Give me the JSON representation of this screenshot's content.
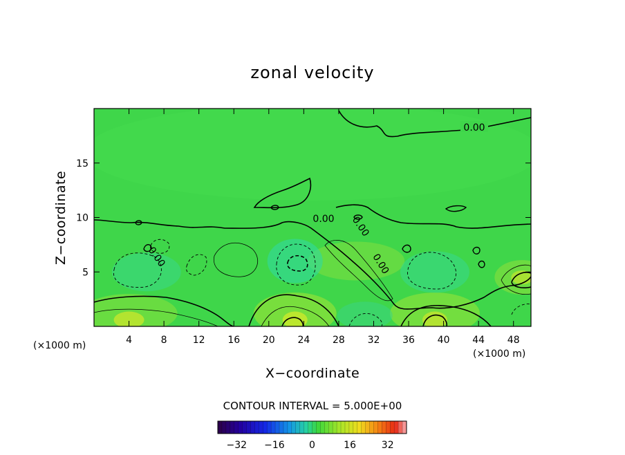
{
  "chart_data": {
    "type": "heatmap",
    "title": "zonal velocity",
    "xlabel": "X−coordinate",
    "ylabel": "Z−coordinate",
    "x_unit_left": "(×1000 m)",
    "x_unit_right": "(×1000 m)",
    "xlim": [
      0,
      50
    ],
    "ylim": [
      0,
      20
    ],
    "x_ticks": [
      4,
      8,
      12,
      16,
      20,
      24,
      28,
      32,
      36,
      40,
      44,
      48
    ],
    "y_ticks": [
      5,
      10,
      15
    ],
    "contour_interval_text": "CONTOUR INTERVAL = 5.000E+00",
    "contour_labels": [
      "0.00",
      "0.00",
      "0.00",
      "0.00",
      "0.00"
    ],
    "colorbar": {
      "min": -40,
      "max": 40,
      "ticks": [
        -32,
        -16,
        0,
        16,
        32
      ],
      "tick_labels": [
        "−32",
        "−16",
        "0",
        "16",
        "32"
      ]
    },
    "features": [
      {
        "sign": "positive",
        "x": 4,
        "z": 1,
        "value": 12
      },
      {
        "sign": "positive",
        "x": 23,
        "z": 1,
        "value": 13
      },
      {
        "sign": "positive",
        "x": 39,
        "z": 1,
        "value": 12
      },
      {
        "sign": "positive",
        "x": 30,
        "z": 6,
        "value": 8
      },
      {
        "sign": "positive",
        "x": 49,
        "z": 4.5,
        "value": 10
      },
      {
        "sign": "negative",
        "x": 6,
        "z": 5,
        "value": -5
      },
      {
        "sign": "negative",
        "x": 23,
        "z": 6,
        "value": -7
      },
      {
        "sign": "negative",
        "x": 39,
        "z": 5,
        "value": -5
      },
      {
        "sign": "negative",
        "x": 31,
        "z": 1,
        "value": -3
      }
    ]
  }
}
